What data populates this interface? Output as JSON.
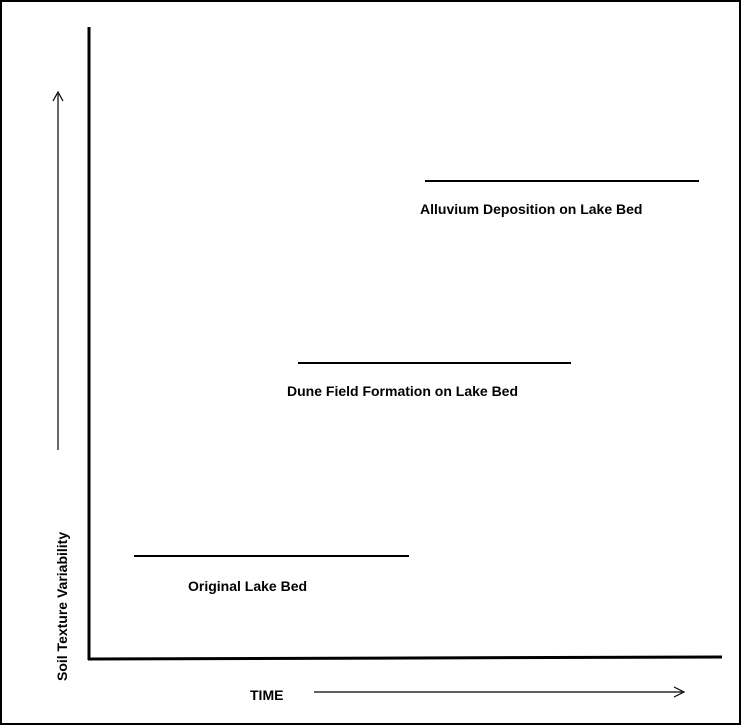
{
  "y_axis_label": "Soil Texture Variability",
  "x_axis_label": "TIME",
  "stages": [
    {
      "label": "Original Lake Bed"
    },
    {
      "label": "Dune Field Formation on Lake Bed"
    },
    {
      "label": "Alluvium Deposition on Lake Bed"
    }
  ]
}
